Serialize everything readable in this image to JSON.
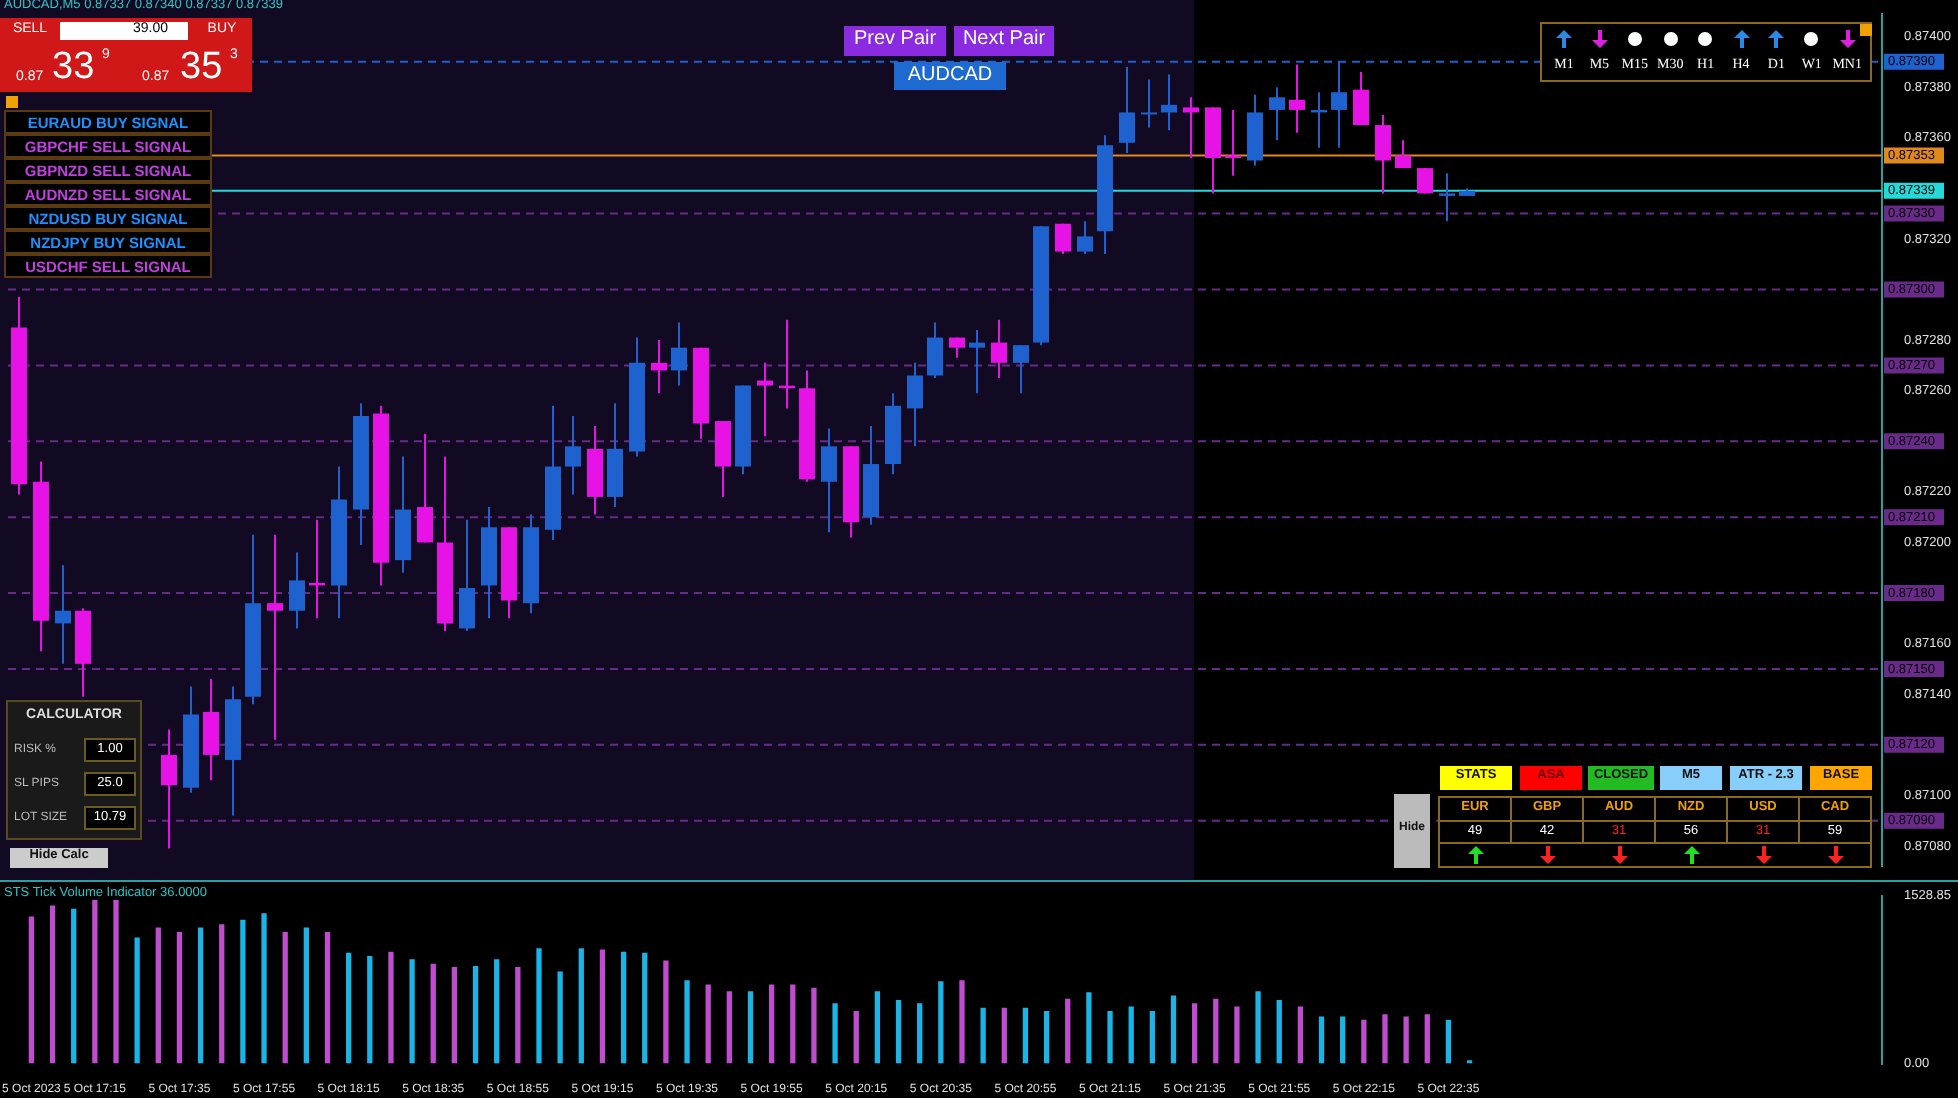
{
  "chart_data": [
    {
      "type": "candlestick",
      "categories": [
        null,
        null,
        null,
        null,
        null,
        null,
        null,
        null,
        null,
        null,
        null,
        null,
        null,
        null,
        null,
        null,
        null,
        null,
        null,
        null,
        null,
        null,
        null,
        null,
        null,
        null,
        null,
        null,
        null,
        null,
        null,
        null,
        null,
        null,
        null,
        null,
        null,
        null,
        null,
        null,
        null,
        null,
        null,
        null,
        null,
        null,
        null,
        null,
        null,
        null,
        null,
        null,
        null,
        null,
        null,
        null,
        null,
        null,
        null,
        null,
        null,
        null,
        null,
        null,
        null,
        null,
        null,
        null,
        null,
        null,
        null,
        null,
        null,
        null,
        null,
        null,
        null,
        null,
        null,
        null,
        null,
        null,
        null,
        null,
        null,
        null,
        null,
        null
      ],
      "ohlc": [
        [
          0.87285,
          0.87297,
          0.87219,
          0.87223
        ],
        [
          0.87224,
          0.87232,
          0.87157,
          0.87169
        ],
        [
          0.87168,
          0.87191,
          0.87152,
          0.87173
        ],
        [
          0.87173,
          0.87174,
          0.87139,
          0.87152
        ],
        null,
        null,
        null,
        [
          0.87116,
          0.87126,
          0.87079,
          0.87104
        ],
        [
          0.87103,
          0.87143,
          0.87101,
          0.87132
        ],
        [
          0.87133,
          0.87146,
          0.87106,
          0.87116
        ],
        [
          0.87114,
          0.87143,
          0.87092,
          0.87138
        ],
        [
          0.87139,
          0.87203,
          0.87136,
          0.87176
        ],
        [
          0.87176,
          0.87203,
          0.87122,
          0.87173
        ],
        [
          0.87173,
          0.87196,
          0.87166,
          0.87185
        ],
        [
          0.87184,
          0.87209,
          0.8717,
          0.87183
        ],
        [
          0.87183,
          0.8723,
          0.8717,
          0.87217
        ],
        [
          0.87213,
          0.87255,
          0.87199,
          0.8725
        ],
        [
          0.87251,
          0.87254,
          0.87183,
          0.87192
        ],
        [
          0.87193,
          0.87234,
          0.87188,
          0.87213
        ],
        [
          0.87214,
          0.87243,
          0.872,
          0.872
        ],
        [
          0.872,
          0.87234,
          0.87165,
          0.87168
        ],
        [
          0.87166,
          0.87209,
          0.87165,
          0.87182
        ],
        [
          0.87183,
          0.87214,
          0.8717,
          0.87206
        ],
        [
          0.87206,
          0.87206,
          0.8717,
          0.87177
        ],
        [
          0.87176,
          0.87211,
          0.87172,
          0.87206
        ],
        [
          0.87205,
          0.87254,
          0.87201,
          0.8723
        ],
        [
          0.8723,
          0.8725,
          0.87219,
          0.87238
        ],
        [
          0.87237,
          0.87246,
          0.87211,
          0.87218
        ],
        [
          0.87218,
          0.87255,
          0.87214,
          0.87237
        ],
        [
          0.87236,
          0.87281,
          0.87234,
          0.87271
        ],
        [
          0.87271,
          0.8728,
          0.87259,
          0.87268
        ],
        [
          0.87268,
          0.87287,
          0.87262,
          0.87277
        ],
        [
          0.87277,
          0.87277,
          0.87241,
          0.87247
        ],
        [
          0.87248,
          0.87248,
          0.87218,
          0.8723
        ],
        [
          0.8723,
          0.87262,
          0.87227,
          0.87262
        ],
        [
          0.87264,
          0.87271,
          0.87242,
          0.87262
        ],
        [
          0.87262,
          0.87288,
          0.87253,
          0.87261
        ],
        [
          0.87261,
          0.87268,
          0.87224,
          0.87225
        ],
        [
          0.87224,
          0.87245,
          0.87204,
          0.87238
        ],
        [
          0.87238,
          0.87238,
          0.87202,
          0.87208
        ],
        [
          0.8721,
          0.87246,
          0.87207,
          0.87231
        ],
        [
          0.87231,
          0.87259,
          0.87227,
          0.87254
        ],
        [
          0.87253,
          0.87271,
          0.87238,
          0.87266
        ],
        [
          0.87266,
          0.87287,
          0.87265,
          0.87281
        ],
        [
          0.87281,
          0.87281,
          0.87273,
          0.87277
        ],
        [
          0.87277,
          0.87284,
          0.87259,
          0.87279
        ],
        [
          0.87279,
          0.87288,
          0.87265,
          0.87271
        ],
        [
          0.87271,
          0.87278,
          0.87259,
          0.87278
        ],
        [
          0.87279,
          0.87325,
          0.87278,
          0.87325
        ],
        [
          0.87326,
          0.87326,
          0.87314,
          0.87315
        ],
        [
          0.87315,
          0.87327,
          0.87314,
          0.87321
        ],
        [
          0.87323,
          0.87361,
          0.87314,
          0.87357
        ],
        [
          0.87358,
          0.87388,
          0.87354,
          0.8737
        ],
        [
          0.8737,
          0.87383,
          0.87364,
          0.8737
        ],
        [
          0.8737,
          0.87385,
          0.87363,
          0.87373
        ],
        [
          0.87372,
          0.87376,
          0.87352,
          0.8737
        ],
        [
          0.87372,
          0.87372,
          0.87338,
          0.87352
        ],
        [
          0.87353,
          0.87371,
          0.87345,
          0.87352
        ],
        [
          0.87351,
          0.87377,
          0.87349,
          0.8737
        ],
        [
          0.87371,
          0.8738,
          0.87359,
          0.87376
        ],
        [
          0.87375,
          0.87389,
          0.87362,
          0.87371
        ],
        [
          0.8737,
          0.87378,
          0.87356,
          0.87371
        ],
        [
          0.87371,
          0.8739,
          0.87356,
          0.87378
        ],
        [
          0.87379,
          0.87386,
          0.87365,
          0.87365
        ],
        [
          0.87365,
          0.87369,
          0.87338,
          0.87351
        ],
        [
          0.87353,
          0.87359,
          0.87348,
          0.87348
        ],
        [
          0.87348,
          0.87348,
          0.87338,
          0.87338
        ],
        [
          0.87337,
          0.87346,
          0.87327,
          0.87338
        ],
        [
          0.87337,
          0.8734,
          0.87337,
          0.87339
        ],
        null,
        null,
        null,
        null,
        null,
        null,
        null,
        null,
        null,
        null,
        null,
        null,
        null,
        null,
        null,
        null,
        null,
        null,
        null
      ],
      "colors": [
        "#e612e6",
        "#e612e6",
        "#1e62d0",
        "#e612e6",
        null,
        null,
        null,
        "#e612e6",
        "#1e62d0",
        "#e612e6",
        "#1e62d0",
        "#1e62d0",
        "#e612e6",
        "#1e62d0",
        "#e612e6",
        "#1e62d0",
        "#1e62d0",
        "#e612e6",
        "#1e62d0",
        "#e612e6",
        "#e612e6",
        "#1e62d0",
        "#1e62d0",
        "#e612e6",
        "#1e62d0",
        "#1e62d0",
        "#1e62d0",
        "#e612e6",
        "#1e62d0",
        "#1e62d0",
        "#e612e6",
        "#1e62d0",
        "#e612e6",
        "#e612e6",
        "#1e62d0",
        "#e612e6",
        "#e612e6",
        "#e612e6",
        "#1e62d0",
        "#e612e6",
        "#1e62d0",
        "#1e62d0",
        "#1e62d0",
        "#1e62d0",
        "#e612e6",
        "#1e62d0",
        "#e612e6",
        "#1e62d0",
        "#1e62d0",
        "#e612e6",
        "#1e62d0",
        "#1e62d0",
        "#1e62d0",
        "#1e62d0",
        "#1e62d0",
        "#e612e6",
        "#e612e6",
        "#e612e6",
        "#1e62d0",
        "#1e62d0",
        "#e612e6",
        "#1e62d0",
        "#1e62d0",
        "#e612e6",
        "#e612e6",
        "#e612e6",
        "#e612e6",
        "#1e62d0",
        "#1e62d0",
        null,
        null,
        null,
        null,
        null,
        null,
        null,
        null,
        null,
        null,
        null,
        null,
        null,
        null,
        null,
        null,
        null,
        null,
        null
      ],
      "ylim": [
        0.87072,
        0.87409
      ],
      "yticks": [
        {
          "value": 0.874,
          "label": "0.87400"
        },
        {
          "value": 0.8738,
          "label": "0.87380"
        },
        {
          "value": 0.8736,
          "label": "0.87360"
        },
        {
          "value": 0.8732,
          "label": "0.87320"
        },
        {
          "value": 0.8728,
          "label": "0.87280"
        },
        {
          "value": 0.8726,
          "label": "0.87260"
        },
        {
          "value": 0.8722,
          "label": "0.87220"
        },
        {
          "value": 0.872,
          "label": "0.87200"
        },
        {
          "value": 0.8716,
          "label": "0.87160"
        },
        {
          "value": 0.8714,
          "label": "0.87140"
        },
        {
          "value": 0.871,
          "label": "0.87100"
        },
        {
          "value": 0.8708,
          "label": "0.87080"
        }
      ],
      "ref_lines": [
        {
          "axis": "y",
          "value": 0.8739,
          "label": "0.87390",
          "color": "#1e62d0",
          "line_style": "dashed"
        },
        {
          "axis": "y",
          "value": 0.87353,
          "label": "0.87353",
          "color": "#e08a1e",
          "line_style": "solid"
        },
        {
          "axis": "y",
          "value": 0.87339,
          "label": "0.87339",
          "color": "#26d9d9",
          "line_style": "solid"
        },
        {
          "axis": "y",
          "value": 0.8733,
          "label": "0.87330",
          "color": "#6a2a8a",
          "line_style": "dashed"
        },
        {
          "axis": "y",
          "value": 0.873,
          "label": "0.87300",
          "color": "#6a2a8a",
          "line_style": "dashed"
        },
        {
          "axis": "y",
          "value": 0.8727,
          "label": "0.87270",
          "color": "#6a2a8a",
          "line_style": "dashed"
        },
        {
          "axis": "y",
          "value": 0.8724,
          "label": "0.87240",
          "color": "#6a2a8a",
          "line_style": "dashed"
        },
        {
          "axis": "y",
          "value": 0.8721,
          "label": "0.87210",
          "color": "#6a2a8a",
          "line_style": "dashed"
        },
        {
          "axis": "y",
          "value": 0.8718,
          "label": "0.87180",
          "color": "#6a2a8a",
          "line_style": "dashed"
        },
        {
          "axis": "y",
          "value": 0.8715,
          "label": "0.87150",
          "color": "#6a2a8a",
          "line_style": "dashed"
        },
        {
          "axis": "y",
          "value": 0.8712,
          "label": "0.87120",
          "color": "#6a2a8a",
          "line_style": "dashed"
        },
        {
          "axis": "y",
          "value": 0.8709,
          "label": "0.87090",
          "color": "#6a2a8a",
          "line_style": "dashed"
        }
      ],
      "tick_labels": "y",
      "annotations": [
        "AUDCAD,M5 0.87337 0.87340 0.87337 0.87339",
        "SELL",
        "39.00",
        "BUY",
        "0.87",
        "33",
        "9",
        "0.87",
        "35",
        "3",
        "Prev Pair",
        "Next Pair",
        "AUDCAD",
        "EURAUD BUY SIGNAL",
        "GBPCHF SELL SIGNAL",
        "GBPNZD SELL SIGNAL",
        "AUDNZD SELL SIGNAL",
        "NZDUSD BUY SIGNAL",
        "NZDJPY BUY SIGNAL",
        "USDCHF SELL SIGNAL",
        "CALCULATOR",
        "RISK %",
        "1.00",
        "SL PIPS",
        "25.0",
        "LOT SIZE",
        "10.79",
        "Hide Calc",
        "M1",
        "M5",
        "M15",
        "M30",
        "H1",
        "H4",
        "D1",
        "W1",
        "MN1",
        "STATS",
        "ASA",
        "CLOSED",
        "M5",
        "ATR - 2.3",
        "BASE",
        "Hide",
        "EUR",
        "GBP",
        "AUD",
        "NZD",
        "USD",
        "CAD",
        "49",
        "42",
        "31",
        "56",
        "31",
        "59"
      ]
    },
    {
      "type": "bar",
      "categories": [
        "5 Oct 2023",
        null,
        null,
        "5 Oct 17:15",
        null,
        null,
        null,
        "5 Oct 17:35",
        null,
        null,
        null,
        "5 Oct 17:55",
        null,
        null,
        null,
        "5 Oct 18:15",
        null,
        null,
        null,
        "5 Oct 18:35",
        null,
        null,
        null,
        "5 Oct 18:55",
        null,
        null,
        null,
        "5 Oct 19:15",
        null,
        null,
        null,
        "5 Oct 19:35",
        null,
        null,
        null,
        "5 Oct 19:55",
        null,
        null,
        null,
        "5 Oct 20:15",
        null,
        null,
        null,
        "5 Oct 20:35",
        null,
        null,
        null,
        "5 Oct 20:55",
        null,
        null,
        null,
        "5 Oct 21:15",
        null,
        null,
        null,
        "5 Oct 21:35",
        null,
        null,
        null,
        "5 Oct 21:55",
        null,
        null,
        null,
        "5 Oct 22:15",
        null,
        null,
        null,
        "5 Oct 22:35",
        null,
        null,
        null,
        null,
        null,
        null,
        null,
        null,
        null,
        null,
        null,
        null,
        null,
        null,
        null,
        null,
        null,
        null,
        null,
        null
      ],
      "values": [
        1340,
        1440,
        1410,
        1490,
        1490,
        1150,
        1240,
        1200,
        1240,
        1270,
        1310,
        1370,
        1200,
        1240,
        1200,
        1010,
        980,
        1020,
        950,
        910,
        880,
        890,
        950,
        880,
        1050,
        840,
        1050,
        1040,
        1020,
        1010,
        940,
        760,
        720,
        660,
        660,
        720,
        720,
        690,
        550,
        480,
        660,
        580,
        550,
        750,
        760,
        510,
        510,
        510,
        480,
        590,
        650,
        480,
        520,
        480,
        620,
        550,
        590,
        520,
        660,
        580,
        520,
        430,
        430,
        400,
        450,
        430,
        450,
        400,
        30,
        null,
        null,
        null,
        null,
        null,
        null,
        null,
        null,
        null,
        null,
        null,
        null,
        null,
        null,
        null,
        null,
        null,
        null,
        null
      ],
      "colors": [
        "#c04cd0",
        "#c04cd0",
        "#1ab4e6",
        "#c04cd0",
        "#c04cd0",
        "#1ab4e6",
        "#c04cd0",
        "#c04cd0",
        "#1ab4e6",
        "#c04cd0",
        "#1ab4e6",
        "#1ab4e6",
        "#c04cd0",
        "#1ab4e6",
        "#c04cd0",
        "#1ab4e6",
        "#1ab4e6",
        "#c04cd0",
        "#1ab4e6",
        "#c04cd0",
        "#c04cd0",
        "#1ab4e6",
        "#1ab4e6",
        "#c04cd0",
        "#1ab4e6",
        "#1ab4e6",
        "#1ab4e6",
        "#c04cd0",
        "#1ab4e6",
        "#1ab4e6",
        "#c04cd0",
        "#1ab4e6",
        "#c04cd0",
        "#c04cd0",
        "#1ab4e6",
        "#c04cd0",
        "#c04cd0",
        "#c04cd0",
        "#1ab4e6",
        "#c04cd0",
        "#1ab4e6",
        "#1ab4e6",
        "#1ab4e6",
        "#1ab4e6",
        "#c04cd0",
        "#1ab4e6",
        "#c04cd0",
        "#1ab4e6",
        "#1ab4e6",
        "#c04cd0",
        "#1ab4e6",
        "#1ab4e6",
        "#1ab4e6",
        "#1ab4e6",
        "#1ab4e6",
        "#c04cd0",
        "#c04cd0",
        "#c04cd0",
        "#1ab4e6",
        "#1ab4e6",
        "#c04cd0",
        "#1ab4e6",
        "#1ab4e6",
        "#c04cd0",
        "#c04cd0",
        "#c04cd0",
        "#c04cd0",
        "#1ab4e6",
        "#1ab4e6",
        null,
        null,
        null,
        null,
        null,
        null,
        null,
        null,
        null,
        null,
        null,
        null,
        null,
        null,
        null,
        null,
        null,
        null,
        null
      ],
      "ylim": [
        0,
        1528.85
      ],
      "yticks": [
        {
          "value": 1528.85,
          "label": "1528.85"
        },
        {
          "value": 0,
          "label": "0.00"
        }
      ],
      "annotations": [
        "STS Tick Volume Indicator 36.0000"
      ]
    }
  ]
}
